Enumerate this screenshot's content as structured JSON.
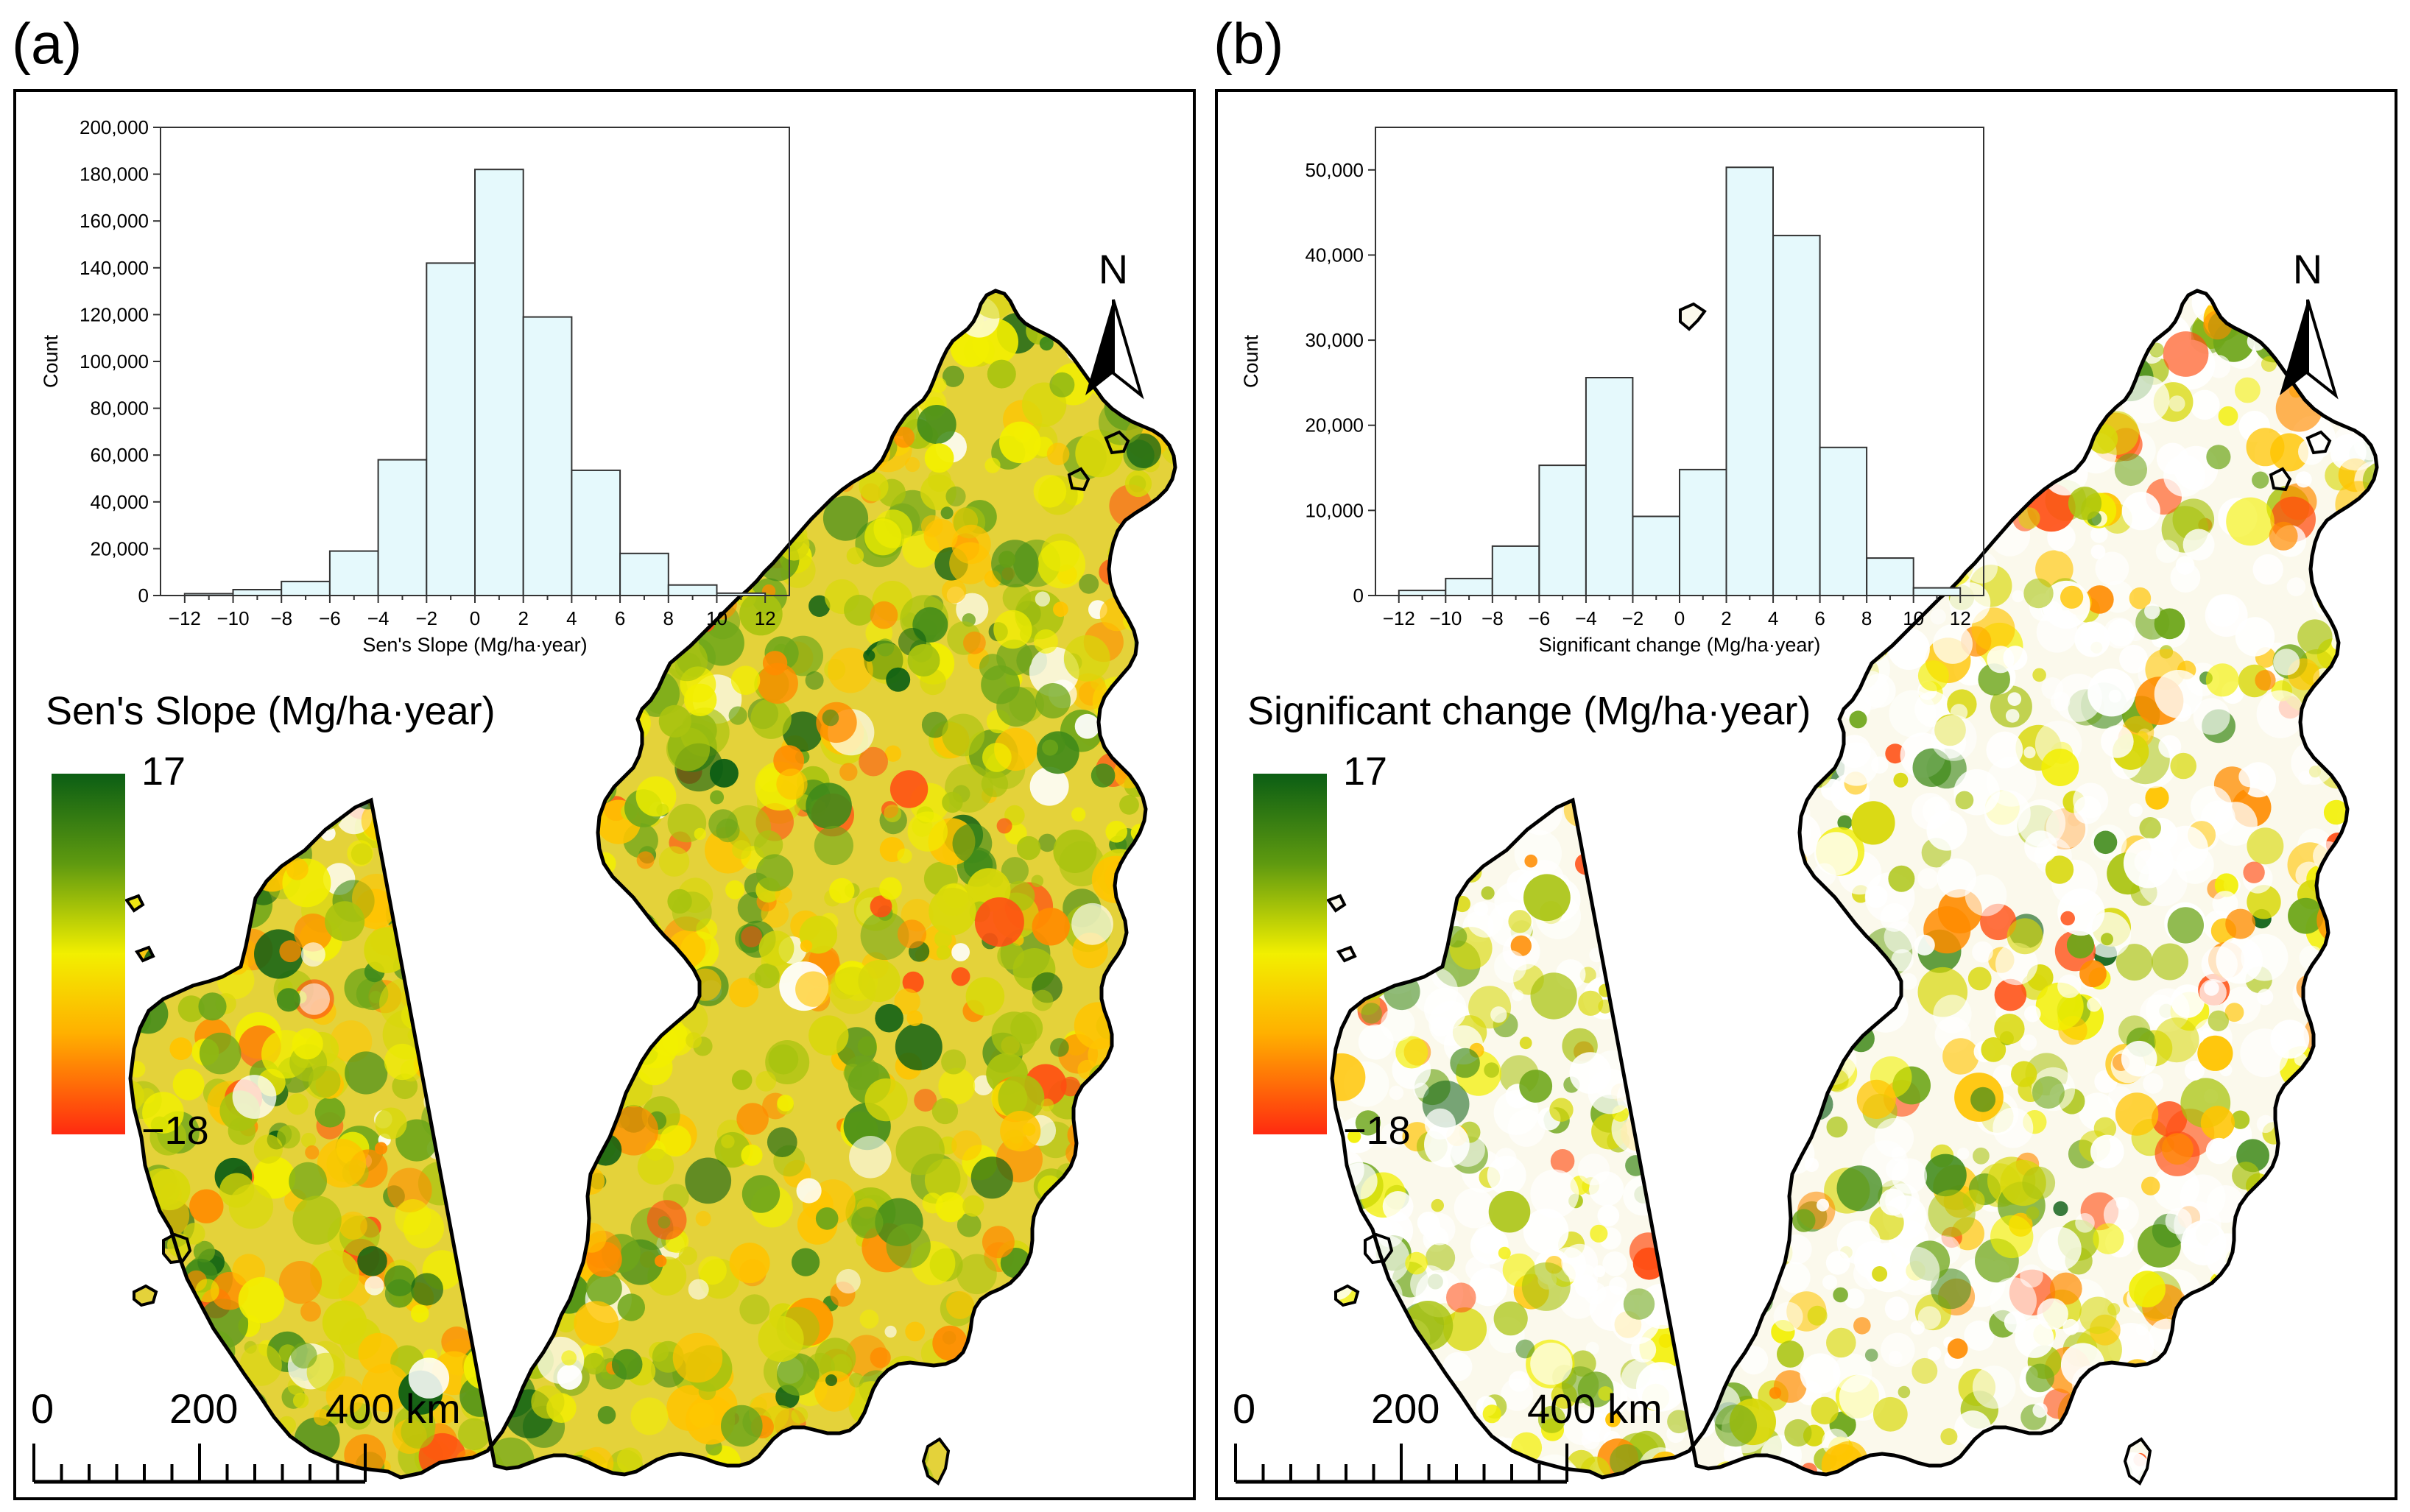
{
  "panels": [
    {
      "label": "(a)",
      "legend_title": "Sen's Slope (Mg/ha·year)",
      "legend_max": "17",
      "legend_min": "−18",
      "colors": {
        "high": "#0b5e14",
        "mid": "#f2ef00",
        "low": "#ff2a10",
        "hist_fill": "#e5f9fc"
      },
      "north_label": "N",
      "scale_labels": [
        "0",
        "200",
        "400 km"
      ],
      "chart_data": {
        "type": "bar",
        "xlabel": "Sen's Slope (Mg/ha·year)",
        "ylabel": "Count",
        "xlim": [
          -13,
          13
        ],
        "ylim": [
          0,
          200000
        ],
        "x_ticks": [
          -12,
          -10,
          -8,
          -6,
          -4,
          -2,
          0,
          2,
          4,
          6,
          8,
          10,
          12
        ],
        "y_ticks": [
          0,
          20000,
          40000,
          60000,
          80000,
          100000,
          120000,
          140000,
          160000,
          180000,
          200000
        ],
        "y_tick_labels": [
          "0",
          "20,000",
          "40,000",
          "60,000",
          "80,000",
          "100,000",
          "120,000",
          "140,000",
          "160,000",
          "180,000",
          "200,000"
        ],
        "bin_starts": [
          -12,
          -10,
          -8,
          -6,
          -4,
          -2,
          0,
          2,
          4,
          6,
          8,
          10
        ],
        "bin_width": 2,
        "values": [
          800,
          2500,
          6000,
          19000,
          58000,
          142000,
          182000,
          119000,
          53500,
          18000,
          4500,
          1000
        ]
      }
    },
    {
      "label": "(b)",
      "legend_title": "Significant change (Mg/ha·year)",
      "legend_max": "17",
      "legend_min": "−18",
      "colors": {
        "high": "#0b5e14",
        "mid": "#f2ef00",
        "low": "#ff2a10",
        "hist_fill": "#e5f9fc"
      },
      "north_label": "N",
      "scale_labels": [
        "0",
        "200",
        "400 km"
      ],
      "chart_data": {
        "type": "bar",
        "xlabel": "Significant change (Mg/ha·year)",
        "ylabel": "Count",
        "xlim": [
          -13,
          13
        ],
        "ylim": [
          0,
          55000
        ],
        "x_ticks": [
          -12,
          -10,
          -8,
          -6,
          -4,
          -2,
          0,
          2,
          4,
          6,
          8,
          10,
          12
        ],
        "y_ticks": [
          0,
          10000,
          20000,
          30000,
          40000,
          50000
        ],
        "y_tick_labels": [
          "0",
          "10,000",
          "20,000",
          "30,000",
          "40,000",
          "50,000"
        ],
        "bin_starts": [
          -12,
          -10,
          -8,
          -6,
          -4,
          -2,
          0,
          2,
          4,
          6,
          8,
          10
        ],
        "bin_width": 2,
        "values": [
          600,
          2000,
          5800,
          15300,
          25600,
          9300,
          14800,
          50300,
          42300,
          17400,
          4400,
          900
        ]
      }
    }
  ]
}
